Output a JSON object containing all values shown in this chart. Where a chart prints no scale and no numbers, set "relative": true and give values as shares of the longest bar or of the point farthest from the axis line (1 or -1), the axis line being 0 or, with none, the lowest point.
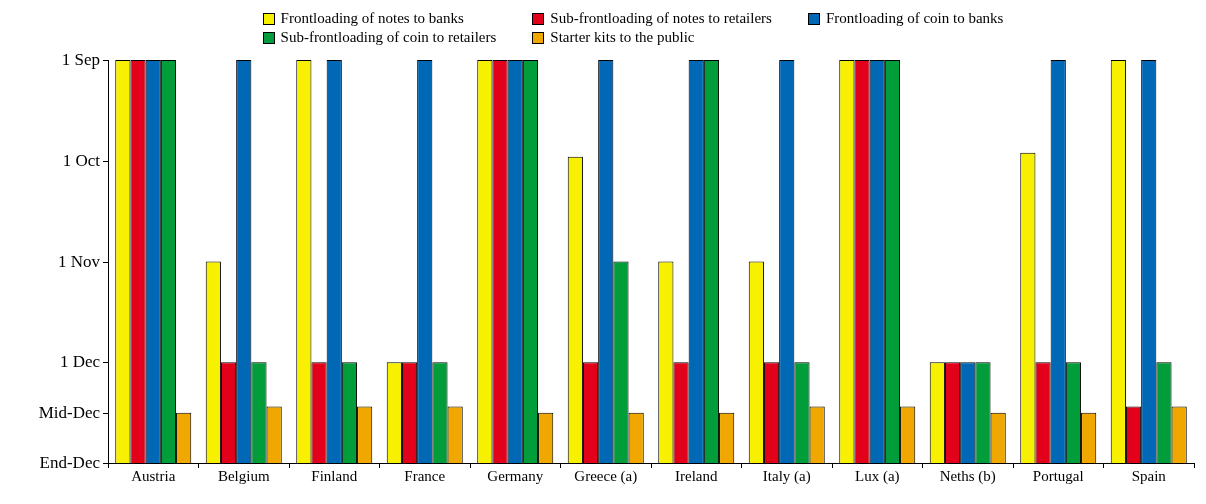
{
  "chart_data": {
    "type": "bar",
    "relative": true,
    "categories": [
      "Austria",
      "Belgium",
      "Finland",
      "France",
      "Germany",
      "Greece (a)",
      "Ireland",
      "Italy (a)",
      "Lux (a)",
      "Neths (b)",
      "Portugal",
      "Spain"
    ],
    "series": [
      {
        "name": "Frontloading of notes to banks",
        "color": "#f7f000",
        "values": [
          1,
          0.5,
          1,
          0.25,
          1,
          0.76,
          0.5,
          0.5,
          1,
          0.25,
          0.77,
          1
        ]
      },
      {
        "name": "Sub-frontloading of notes to retailers",
        "color": "#e2001a",
        "values": [
          1,
          0.25,
          0.25,
          0.25,
          1,
          0.25,
          0.25,
          0.25,
          1,
          0.25,
          0.25,
          0.14
        ]
      },
      {
        "name": "Frontloading of coin to banks",
        "color": "#0068b4",
        "values": [
          1,
          1,
          1,
          1,
          1,
          1,
          1,
          1,
          1,
          0.25,
          1,
          1
        ]
      },
      {
        "name": "Sub-frontloading of coin to retailers",
        "color": "#009d3a",
        "values": [
          1,
          0.25,
          0.25,
          0.25,
          1,
          0.5,
          1,
          0.25,
          1,
          0.25,
          0.25,
          0.25
        ]
      },
      {
        "name": "Starter kits to the public",
        "color": "#f0a800",
        "values": [
          0.125,
          0.14,
          0.14,
          0.14,
          0.125,
          0.125,
          0.125,
          0.14,
          0.14,
          0.125,
          0.125,
          0.14
        ]
      }
    ],
    "annotations": [
      "End-Dec",
      "Mid-Dec",
      "1 Dec",
      "1 Nov",
      "1 Oct",
      "1 Sep"
    ],
    "grid": false,
    "legend": "top"
  }
}
